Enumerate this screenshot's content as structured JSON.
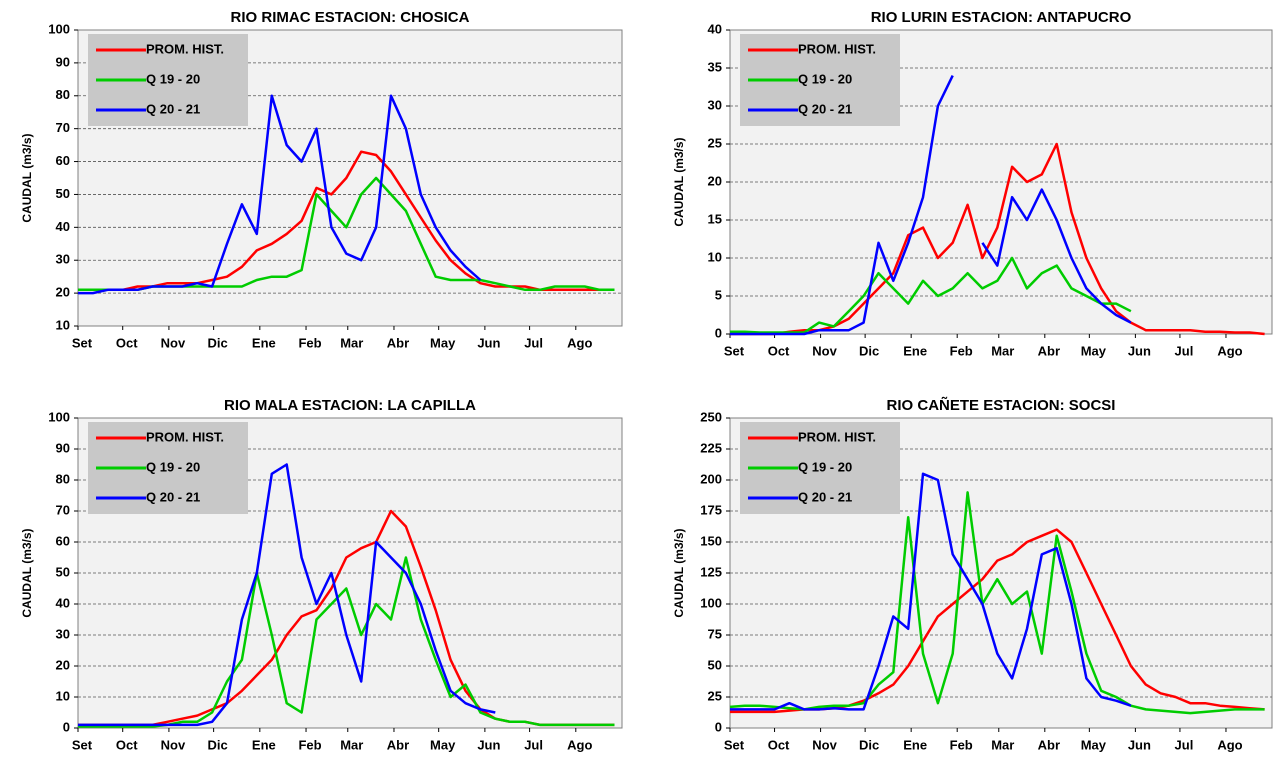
{
  "chart_data": [
    {
      "type": "line",
      "title": "RIO RIMAC ESTACION:  CHOSICA",
      "y_label": "CAUDAL (m3/s)",
      "legend": "upper left",
      "grid": true,
      "x": [
        0,
        10,
        20,
        30,
        40,
        50,
        60,
        70,
        80,
        90,
        100,
        110,
        120,
        130,
        140,
        150,
        160,
        170,
        180,
        190,
        200,
        210,
        220,
        230,
        240,
        250,
        260,
        270,
        280,
        290,
        300,
        310,
        320,
        330,
        340,
        350,
        360
      ],
      "xlim": [
        0,
        365
      ],
      "xticks": [
        {
          "value": 0,
          "label": "Set"
        },
        {
          "value": 30,
          "label": "Oct"
        },
        {
          "value": 61,
          "label": "Nov"
        },
        {
          "value": 91,
          "label": "Dic"
        },
        {
          "value": 122,
          "label": "Ene"
        },
        {
          "value": 153,
          "label": "Feb"
        },
        {
          "value": 181,
          "label": "Mar"
        },
        {
          "value": 212,
          "label": "Abr"
        },
        {
          "value": 242,
          "label": "May"
        },
        {
          "value": 273,
          "label": "Jun"
        },
        {
          "value": 303,
          "label": "Jul"
        },
        {
          "value": 334,
          "label": "Ago"
        }
      ],
      "ylim": [
        10,
        100
      ],
      "yticks": [
        10,
        20,
        30,
        40,
        50,
        60,
        70,
        80,
        90,
        100
      ],
      "series": [
        {
          "name": "PROM. HIST.",
          "color": "#ff0000",
          "values": [
            21,
            21,
            21,
            21,
            22,
            22,
            23,
            23,
            23,
            24,
            25,
            28,
            33,
            35,
            38,
            42,
            52,
            50,
            55,
            63,
            62,
            57,
            50,
            43,
            36,
            30,
            26,
            23,
            22,
            22,
            22,
            21,
            21,
            21,
            21,
            21,
            21
          ]
        },
        {
          "name": "Q 19 - 20",
          "color": "#00cc00",
          "values": [
            21,
            21,
            21,
            21,
            21,
            22,
            22,
            22,
            22,
            22,
            22,
            22,
            24,
            25,
            25,
            27,
            50,
            45,
            40,
            50,
            55,
            50,
            45,
            35,
            25,
            24,
            24,
            24,
            23,
            22,
            21,
            21,
            22,
            22,
            22,
            21,
            21
          ]
        },
        {
          "name": "Q 20 - 21",
          "color": "#0000ff",
          "values": [
            20,
            20,
            21,
            21,
            21,
            22,
            22,
            22,
            23,
            22,
            35,
            47,
            38,
            80,
            65,
            60,
            70,
            40,
            32,
            30,
            40,
            80,
            70,
            50,
            40,
            33,
            28,
            24,
            null,
            null,
            null,
            null,
            null,
            null,
            null,
            null,
            null
          ]
        }
      ]
    },
    {
      "type": "line",
      "title": "RIO LURIN ESTACION: ANTAPUCRO",
      "y_label": "CAUDAL  (m3/s)",
      "legend": "upper left",
      "grid": true,
      "x": [
        0,
        10,
        20,
        30,
        40,
        50,
        60,
        70,
        80,
        90,
        100,
        110,
        120,
        130,
        140,
        150,
        160,
        170,
        180,
        190,
        200,
        210,
        220,
        230,
        240,
        250,
        260,
        270,
        280,
        290,
        300,
        310,
        320,
        330,
        340,
        350,
        360
      ],
      "xlim": [
        0,
        365
      ],
      "xticks": [
        {
          "value": 0,
          "label": "Set"
        },
        {
          "value": 30,
          "label": "Oct"
        },
        {
          "value": 61,
          "label": "Nov"
        },
        {
          "value": 91,
          "label": "Dic"
        },
        {
          "value": 122,
          "label": "Ene"
        },
        {
          "value": 153,
          "label": "Feb"
        },
        {
          "value": 181,
          "label": "Mar"
        },
        {
          "value": 212,
          "label": "Abr"
        },
        {
          "value": 242,
          "label": "May"
        },
        {
          "value": 273,
          "label": "Jun"
        },
        {
          "value": 303,
          "label": "Jul"
        },
        {
          "value": 334,
          "label": "Ago"
        }
      ],
      "ylim": [
        0,
        40
      ],
      "yticks": [
        0,
        5,
        10,
        15,
        20,
        25,
        30,
        35,
        40
      ],
      "series": [
        {
          "name": "PROM. HIST.",
          "color": "#ff0000",
          "values": [
            0,
            0,
            0,
            0,
            0.3,
            0.5,
            0.5,
            1,
            2,
            4,
            6,
            8,
            13,
            14,
            10,
            12,
            17,
            10,
            14,
            22,
            20,
            21,
            25,
            16,
            10,
            6,
            3,
            1.5,
            0.5,
            0.5,
            0.5,
            0.5,
            0.3,
            0.3,
            0.2,
            0.2,
            0
          ]
        },
        {
          "name": "Q 19 - 20",
          "color": "#00cc00",
          "values": [
            0.3,
            0.3,
            0.2,
            0.2,
            0.2,
            0.2,
            1.5,
            1,
            3,
            5,
            8,
            6,
            4,
            7,
            5,
            6,
            8,
            6,
            7,
            10,
            6,
            8,
            9,
            6,
            5,
            4,
            4,
            3,
            null,
            null,
            null,
            null,
            null,
            null,
            null,
            null,
            null
          ]
        },
        {
          "name": "Q 20 - 21",
          "color": "#0000ff",
          "values": [
            0,
            0,
            0,
            0,
            0,
            0,
            0.5,
            0.5,
            0.5,
            1.5,
            12,
            7,
            12,
            18,
            30,
            34,
            null,
            12,
            9,
            18,
            15,
            19,
            15,
            10,
            6,
            4,
            2.5,
            1.5,
            null,
            null,
            null,
            null,
            null,
            null,
            null,
            null,
            null
          ]
        }
      ]
    },
    {
      "type": "line",
      "title": "RIO MALA ESTACION:  LA CAPILLA",
      "y_label": "CAUDAL (m3/s)",
      "legend": "upper left",
      "grid": true,
      "x": [
        0,
        10,
        20,
        30,
        40,
        50,
        60,
        70,
        80,
        90,
        100,
        110,
        120,
        130,
        140,
        150,
        160,
        170,
        180,
        190,
        200,
        210,
        220,
        230,
        240,
        250,
        260,
        270,
        280,
        290,
        300,
        310,
        320,
        330,
        340,
        350,
        360
      ],
      "xlim": [
        0,
        365
      ],
      "xticks": [
        {
          "value": 0,
          "label": "Set"
        },
        {
          "value": 30,
          "label": "Oct"
        },
        {
          "value": 61,
          "label": "Nov"
        },
        {
          "value": 91,
          "label": "Dic"
        },
        {
          "value": 122,
          "label": "Ene"
        },
        {
          "value": 153,
          "label": "Feb"
        },
        {
          "value": 181,
          "label": "Mar"
        },
        {
          "value": 212,
          "label": "Abr"
        },
        {
          "value": 242,
          "label": "May"
        },
        {
          "value": 273,
          "label": "Jun"
        },
        {
          "value": 303,
          "label": "Jul"
        },
        {
          "value": 334,
          "label": "Ago"
        }
      ],
      "ylim": [
        0,
        100
      ],
      "yticks": [
        0,
        10,
        20,
        30,
        40,
        50,
        60,
        70,
        80,
        90,
        100
      ],
      "series": [
        {
          "name": "PROM. HIST.",
          "color": "#ff0000",
          "values": [
            1,
            1,
            1,
            1,
            1,
            1,
            2,
            3,
            4,
            6,
            8,
            12,
            17,
            22,
            30,
            36,
            38,
            45,
            55,
            58,
            60,
            70,
            65,
            52,
            38,
            22,
            12,
            6,
            3,
            2,
            2,
            1,
            1,
            1,
            1,
            1,
            1
          ]
        },
        {
          "name": "Q 19 - 20",
          "color": "#00cc00",
          "values": [
            0.5,
            0.5,
            0.5,
            0.5,
            0.5,
            0.5,
            1,
            2,
            2,
            5,
            15,
            22,
            50,
            30,
            8,
            5,
            35,
            40,
            45,
            30,
            40,
            35,
            55,
            35,
            22,
            10,
            14,
            5,
            3,
            2,
            2,
            1,
            1,
            1,
            1,
            1,
            1
          ]
        },
        {
          "name": "Q 20 - 21",
          "color": "#0000ff",
          "values": [
            1,
            1,
            1,
            1,
            1,
            1,
            1,
            1,
            1,
            2,
            8,
            35,
            50,
            82,
            85,
            55,
            40,
            50,
            30,
            15,
            60,
            55,
            50,
            40,
            25,
            12,
            8,
            6,
            5,
            null,
            null,
            null,
            null,
            null,
            null,
            null,
            null
          ]
        }
      ]
    },
    {
      "type": "line",
      "title": "RIO CAÑETE ESTACION: SOCSI",
      "y_label": "CAUDAL  (m3/s)",
      "legend": "upper left",
      "grid": true,
      "x": [
        0,
        10,
        20,
        30,
        40,
        50,
        60,
        70,
        80,
        90,
        100,
        110,
        120,
        130,
        140,
        150,
        160,
        170,
        180,
        190,
        200,
        210,
        220,
        230,
        240,
        250,
        260,
        270,
        280,
        290,
        300,
        310,
        320,
        330,
        340,
        350,
        360
      ],
      "xlim": [
        0,
        365
      ],
      "xticks": [
        {
          "value": 0,
          "label": "Set"
        },
        {
          "value": 30,
          "label": "Oct"
        },
        {
          "value": 61,
          "label": "Nov"
        },
        {
          "value": 91,
          "label": "Dic"
        },
        {
          "value": 122,
          "label": "Ene"
        },
        {
          "value": 153,
          "label": "Feb"
        },
        {
          "value": 181,
          "label": "Mar"
        },
        {
          "value": 212,
          "label": "Abr"
        },
        {
          "value": 242,
          "label": "May"
        },
        {
          "value": 273,
          "label": "Jun"
        },
        {
          "value": 303,
          "label": "Jul"
        },
        {
          "value": 334,
          "label": "Ago"
        }
      ],
      "ylim": [
        0,
        250
      ],
      "yticks": [
        0,
        25,
        50,
        75,
        100,
        125,
        150,
        175,
        200,
        225,
        250
      ],
      "series": [
        {
          "name": "PROM. HIST.",
          "color": "#ff0000",
          "values": [
            13,
            13,
            13,
            13,
            14,
            15,
            15,
            16,
            18,
            22,
            28,
            35,
            50,
            70,
            90,
            100,
            110,
            120,
            135,
            140,
            150,
            155,
            160,
            150,
            125,
            100,
            75,
            50,
            35,
            28,
            25,
            20,
            20,
            18,
            17,
            16,
            15
          ]
        },
        {
          "name": "Q 19 - 20",
          "color": "#00cc00",
          "values": [
            17,
            18,
            18,
            17,
            16,
            15,
            17,
            18,
            18,
            20,
            35,
            45,
            170,
            60,
            20,
            60,
            190,
            100,
            120,
            100,
            110,
            60,
            155,
            110,
            60,
            30,
            25,
            18,
            15,
            14,
            13,
            12,
            13,
            14,
            15,
            15,
            15
          ]
        },
        {
          "name": "Q 20 - 21",
          "color": "#0000ff",
          "values": [
            15,
            15,
            15,
            15,
            20,
            15,
            15,
            16,
            15,
            15,
            50,
            90,
            80,
            205,
            200,
            140,
            120,
            100,
            60,
            40,
            80,
            140,
            145,
            100,
            40,
            25,
            22,
            18,
            null,
            null,
            null,
            null,
            null,
            null,
            null,
            null,
            null
          ]
        }
      ]
    }
  ]
}
